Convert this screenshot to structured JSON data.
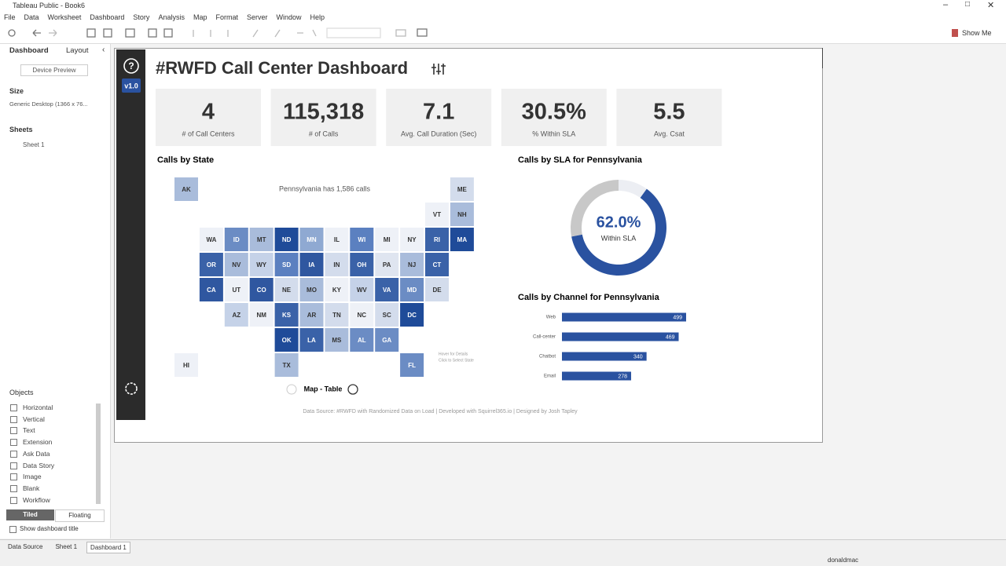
{
  "window": {
    "title": "Tableau Public - Book6"
  },
  "menu": [
    "File",
    "Data",
    "Worksheet",
    "Dashboard",
    "Story",
    "Analysis",
    "Map",
    "Format",
    "Server",
    "Window",
    "Help"
  ],
  "toolbar": {
    "show_me": "Show Me"
  },
  "side_panel": {
    "tabs": [
      "Dashboard",
      "Layout"
    ],
    "device_preview": "Device Preview",
    "size_heading": "Size",
    "size_value": "Generic Desktop (1366 x 76...",
    "sheets_heading": "Sheets",
    "sheets": [
      "Sheet 1"
    ],
    "objects_heading": "Objects",
    "objects": [
      "Horizontal",
      "Vertical",
      "Text",
      "Extension",
      "Ask Data",
      "Data Story",
      "Image",
      "Blank",
      "Workflow"
    ],
    "layout_modes": [
      "Tiled",
      "Floating"
    ],
    "show_title": "Show dashboard title"
  },
  "dashboard": {
    "title": "#RWFD Call Center Dashboard",
    "version": "v1.0",
    "kpis": [
      {
        "value": "4",
        "label": "# of Call Centers"
      },
      {
        "value": "115,318",
        "label": "# of Calls"
      },
      {
        "value": "7.1",
        "label": "Avg. Call Duration (Sec)"
      },
      {
        "value": "30.5%",
        "label": "% Within SLA"
      },
      {
        "value": "5.5",
        "label": "Avg. Csat"
      }
    ],
    "map": {
      "title": "Calls by State",
      "annotation": "Pennsylvania has 1,586 calls",
      "rows": [
        [
          {
            "label": "AK",
            "color": "#a9bcdb"
          },
          null,
          null,
          null,
          null,
          null,
          null,
          null,
          null,
          null,
          null,
          {
            "label": "ME",
            "color": "#d3dcec"
          }
        ],
        [
          null,
          null,
          null,
          null,
          null,
          null,
          null,
          null,
          null,
          null,
          {
            "label": "VT",
            "color": "#eef1f7"
          },
          {
            "label": "NH",
            "color": "#a9bcdb"
          }
        ],
        [
          null,
          {
            "label": "WA",
            "color": "#eef1f7"
          },
          {
            "label": "ID",
            "color": "#6b8cc4"
          },
          {
            "label": "MT",
            "color": "#a9bcdb"
          },
          {
            "label": "ND",
            "color": "#1f4b99"
          },
          {
            "label": "MN",
            "color": "#8fa9d2"
          },
          {
            "label": "IL",
            "color": "#eef1f7"
          },
          {
            "label": "WI",
            "color": "#5b80c0"
          },
          {
            "label": "MI",
            "color": "#eef1f7"
          },
          {
            "label": "NY",
            "color": "#eef1f7"
          },
          {
            "label": "RI",
            "color": "#3a62a8"
          },
          {
            "label": "MA",
            "color": "#1f4b99"
          }
        ],
        [
          null,
          {
            "label": "OR",
            "color": "#3a62a8"
          },
          {
            "label": "NV",
            "color": "#a9bcdb"
          },
          {
            "label": "WY",
            "color": "#c5d2e8"
          },
          {
            "label": "SD",
            "color": "#5b80c0"
          },
          {
            "label": "IA",
            "color": "#2f57a0"
          },
          {
            "label": "IN",
            "color": "#d3dcec"
          },
          {
            "label": "OH",
            "color": "#3a62a8"
          },
          {
            "label": "PA",
            "color": "#dfe5f0"
          },
          {
            "label": "NJ",
            "color": "#a9bcdb"
          },
          {
            "label": "CT",
            "color": "#3a62a8"
          },
          null
        ],
        [
          null,
          {
            "label": "CA",
            "color": "#2f57a0"
          },
          {
            "label": "UT",
            "color": "#eef1f7"
          },
          {
            "label": "CO",
            "color": "#2f57a0"
          },
          {
            "label": "NE",
            "color": "#d3dcec"
          },
          {
            "label": "MO",
            "color": "#a9bcdb"
          },
          {
            "label": "KY",
            "color": "#eef1f7"
          },
          {
            "label": "WV",
            "color": "#c5d2e8"
          },
          {
            "label": "VA",
            "color": "#3a62a8"
          },
          {
            "label": "MD",
            "color": "#6b8cc4"
          },
          {
            "label": "DE",
            "color": "#d3dcec"
          },
          null
        ],
        [
          null,
          null,
          {
            "label": "AZ",
            "color": "#c5d2e8"
          },
          {
            "label": "NM",
            "color": "#eef1f7"
          },
          {
            "label": "KS",
            "color": "#3a62a8"
          },
          {
            "label": "AR",
            "color": "#a9bcdb"
          },
          {
            "label": "TN",
            "color": "#d3dcec"
          },
          {
            "label": "NC",
            "color": "#eef1f7"
          },
          {
            "label": "SC",
            "color": "#d3dcec"
          },
          {
            "label": "DC",
            "color": "#1f4b99"
          },
          null,
          null
        ],
        [
          null,
          null,
          null,
          null,
          {
            "label": "OK",
            "color": "#1f4b99"
          },
          {
            "label": "LA",
            "color": "#3a62a8"
          },
          {
            "label": "MS",
            "color": "#a9bcdb"
          },
          {
            "label": "AL",
            "color": "#6b8cc4"
          },
          {
            "label": "GA",
            "color": "#6b8cc4"
          },
          null,
          null,
          null
        ],
        [
          {
            "label": "HI",
            "color": "#eef1f7"
          },
          null,
          null,
          null,
          {
            "label": "TX",
            "color": "#a9bcdb"
          },
          null,
          null,
          null,
          null,
          {
            "label": "FL",
            "color": "#6b8cc4"
          },
          null,
          null
        ]
      ],
      "toggle": "Map - Table",
      "hints": [
        "Hover for Details",
        "Click to Select State"
      ]
    },
    "sla": {
      "title": "Calls by SLA for Pennsylvania",
      "value_label": "62.0%",
      "label": "Within SLA",
      "segments": [
        {
          "value": 10,
          "color": "#eceef3"
        },
        {
          "value": 62.0,
          "color": "#2a52a0"
        },
        {
          "value": 28,
          "color": "#c8c8c8"
        }
      ]
    },
    "channels": {
      "title": "Calls by Channel for Pennsylvania",
      "categories": [
        "Web",
        "Call-center",
        "Chatbot",
        "Email"
      ],
      "values": [
        499,
        469,
        340,
        278
      ],
      "color": "#2a52a0"
    },
    "footer": "Data Source: #RWFD with Randomized Data on Load | Developed with Squirrel365.io | Designed by Josh Tapley"
  },
  "sheet_tabs": [
    "Data Source",
    "Sheet 1",
    "Dashboard 1"
  ],
  "status": {
    "user": "donaldmac"
  }
}
